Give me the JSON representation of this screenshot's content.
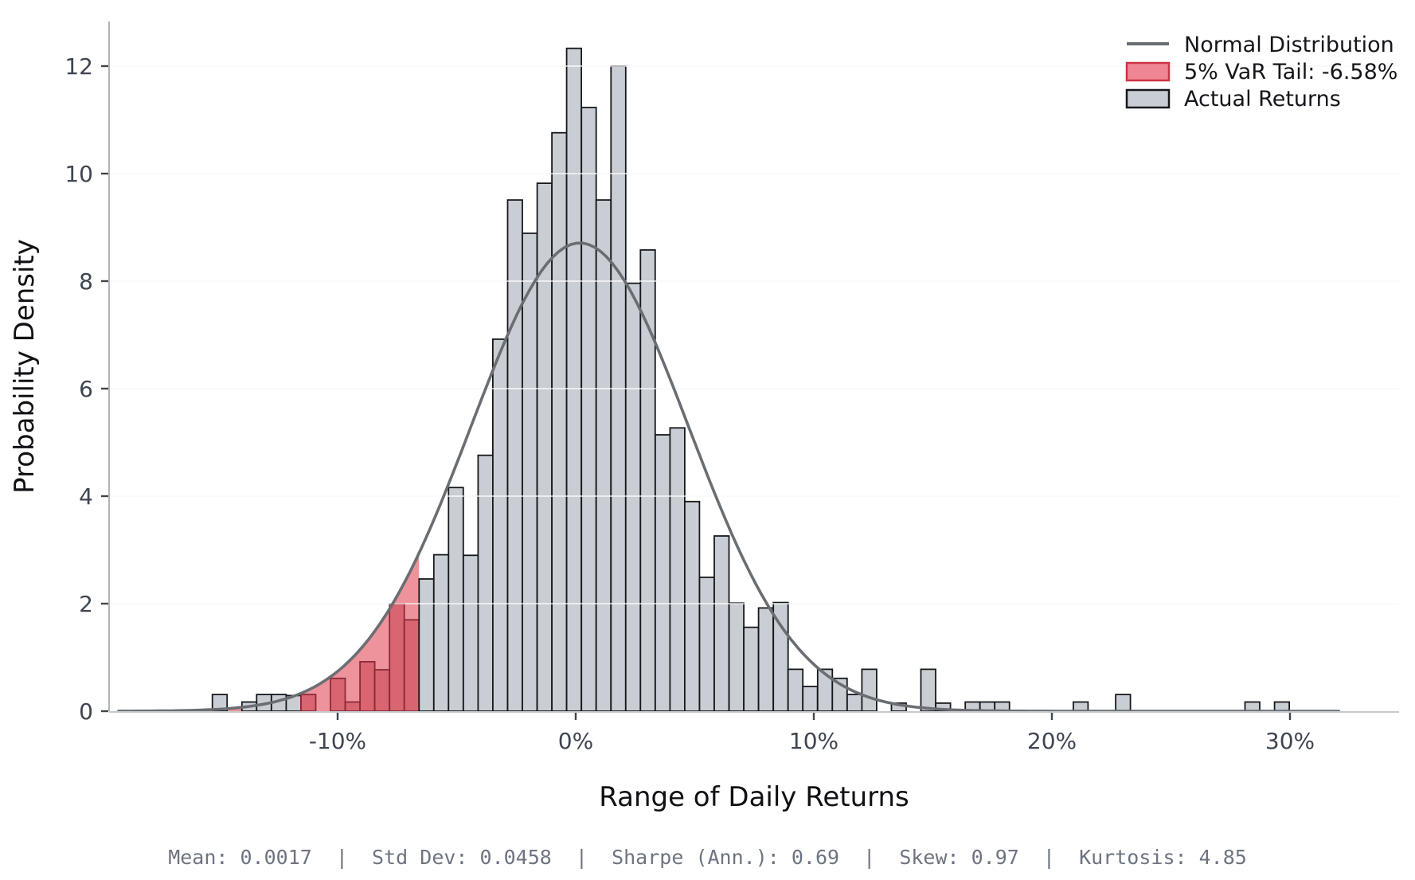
{
  "chart_data": {
    "type": "histogram_with_density_line",
    "title": "",
    "xlabel": "Range of Daily Returns",
    "ylabel": "Probability Density",
    "x_tick_values": [
      -10,
      0,
      10,
      20,
      30
    ],
    "x_tick_labels": [
      "-10%",
      "0%",
      "10%",
      "20%",
      "30%"
    ],
    "y_tick_values": [
      0,
      2,
      4,
      6,
      8,
      10,
      12
    ],
    "y_tick_labels": [
      "0",
      "2",
      "4",
      "6",
      "8",
      "10",
      "12"
    ],
    "xlim_pct": [
      -19.6,
      34.6
    ],
    "ylim": [
      0,
      12.83
    ],
    "grid": "horizontal-only",
    "bin_width_pct": 0.62,
    "var_threshold_pct": -6.58,
    "normal_curve": {
      "mean_pct": 0.17,
      "sigma_pct": 4.58,
      "peak_density": 8.71,
      "x_start_pct": -19.2,
      "x_end_pct": 32.2
    },
    "bars": [
      [
        -15.26,
        0.31,
        "g"
      ],
      [
        -14.02,
        0.17,
        "g"
      ],
      [
        -13.4,
        0.31,
        "g"
      ],
      [
        -12.78,
        0.31,
        "g"
      ],
      [
        -12.16,
        0.29,
        "g"
      ],
      [
        -11.54,
        0.31,
        "r"
      ],
      [
        -10.3,
        0.61,
        "r"
      ],
      [
        -9.68,
        0.17,
        "r"
      ],
      [
        -9.06,
        0.92,
        "r"
      ],
      [
        -8.44,
        0.77,
        "r"
      ],
      [
        -7.82,
        2.0,
        "r"
      ],
      [
        -7.2,
        1.7,
        "r"
      ],
      [
        -6.58,
        2.46,
        "g"
      ],
      [
        -5.96,
        2.91,
        "g"
      ],
      [
        -5.34,
        4.16,
        "g"
      ],
      [
        -4.72,
        2.9,
        "g"
      ],
      [
        -4.1,
        4.76,
        "g"
      ],
      [
        -3.48,
        6.92,
        "g"
      ],
      [
        -2.86,
        9.51,
        "g"
      ],
      [
        -2.24,
        8.89,
        "g"
      ],
      [
        -1.62,
        9.82,
        "g"
      ],
      [
        -1.0,
        10.76,
        "g"
      ],
      [
        -0.38,
        12.33,
        "g"
      ],
      [
        0.24,
        11.23,
        "g"
      ],
      [
        0.86,
        9.51,
        "g"
      ],
      [
        1.48,
        12.0,
        "g"
      ],
      [
        2.1,
        7.96,
        "g"
      ],
      [
        2.72,
        8.58,
        "g"
      ],
      [
        3.34,
        5.14,
        "g"
      ],
      [
        3.96,
        5.27,
        "g"
      ],
      [
        4.58,
        3.9,
        "g"
      ],
      [
        5.2,
        2.49,
        "g"
      ],
      [
        5.82,
        3.26,
        "g"
      ],
      [
        6.44,
        2.01,
        "g"
      ],
      [
        7.06,
        1.56,
        "g"
      ],
      [
        7.68,
        1.92,
        "g"
      ],
      [
        8.3,
        2.02,
        "g"
      ],
      [
        8.92,
        0.78,
        "g"
      ],
      [
        9.54,
        0.46,
        "g"
      ],
      [
        10.16,
        0.78,
        "g"
      ],
      [
        10.78,
        0.61,
        "g"
      ],
      [
        11.4,
        0.31,
        "g"
      ],
      [
        12.02,
        0.78,
        "g"
      ],
      [
        13.26,
        0.15,
        "g"
      ],
      [
        14.5,
        0.78,
        "g"
      ],
      [
        15.12,
        0.15,
        "g"
      ],
      [
        16.36,
        0.17,
        "g"
      ],
      [
        16.98,
        0.17,
        "g"
      ],
      [
        17.6,
        0.17,
        "g"
      ],
      [
        20.9,
        0.17,
        "g"
      ],
      [
        22.68,
        0.31,
        "g"
      ],
      [
        28.11,
        0.17,
        "g"
      ],
      [
        29.35,
        0.17,
        "g"
      ]
    ],
    "legend": {
      "position": "upper-right",
      "items": [
        {
          "label": "Normal Distribution",
          "type": "line"
        },
        {
          "label": "5% VaR Tail: -6.58%",
          "type": "patch-red"
        },
        {
          "label": "Actual Returns",
          "type": "patch-gray"
        }
      ]
    },
    "colors": {
      "bar_fill": "#c9ced5",
      "bar_edge": "#16181b",
      "var_bar_fill": "#d96571",
      "var_bar_edge": "#8c2a37",
      "var_area_fill": "rgba(221,40,55,0.5)",
      "curve": "#6a6e73",
      "gridline": "#e7e8ea",
      "grid_over_bars": "rgba(255,255,255,0.85)",
      "spine_left": "#aeb4ba",
      "spine_bottom": "#c6cbcf",
      "tick_mark": "#3f464d",
      "tick_label": "#3e4550",
      "axis_label": "#101114",
      "footer_text": "#6d7480"
    },
    "stats_footer": "Mean: 0.0017  |  Std Dev: 0.0458  |  Sharpe (Ann.): 0.69  |  Skew: 0.97  |  Kurtosis: 4.85"
  },
  "legend_labels": {
    "normal": "Normal Distribution",
    "var_tail": "5% VaR Tail: -6.58%",
    "actual": "Actual Returns"
  }
}
